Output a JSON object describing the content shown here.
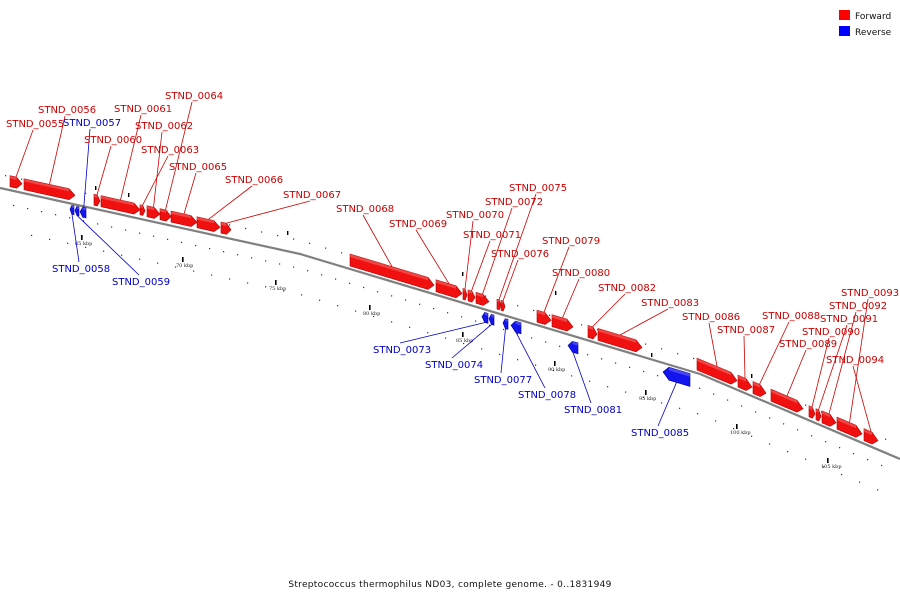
{
  "caption": "Streptococcus thermophilus ND03, complete genome. - 0..1831949",
  "legend": [
    {
      "label": "Forward",
      "color": "#ff0000"
    },
    {
      "label": "Reverse",
      "color": "#0000ff"
    }
  ],
  "colors": {
    "forward_fill": "#f01010",
    "forward_edge": "#b00000",
    "reverse_fill": "#1414ee",
    "reverse_edge": "#000099",
    "backbone": "#808080",
    "forward_label": "#cc0000",
    "reverse_label": "#0000cc"
  },
  "ticks": [
    {
      "kbp": 65,
      "label": "65 kbp"
    },
    {
      "kbp": 70,
      "label": "70 kbp"
    },
    {
      "kbp": 75,
      "label": "75 kbp"
    },
    {
      "kbp": 80,
      "label": "80 kbp"
    },
    {
      "kbp": 85,
      "label": "85 kbp"
    },
    {
      "kbp": 90,
      "label": "90 kbp"
    },
    {
      "kbp": 95,
      "label": "95 kbp"
    },
    {
      "kbp": 100,
      "label": "100 kbp"
    },
    {
      "kbp": 105,
      "label": "105 kbp"
    }
  ],
  "genes": [
    {
      "name": "STND_0055",
      "strand": "forward"
    },
    {
      "name": "STND_0056",
      "strand": "forward"
    },
    {
      "name": "STND_0057",
      "strand": "reverse"
    },
    {
      "name": "STND_0058",
      "strand": "reverse"
    },
    {
      "name": "STND_0059",
      "strand": "reverse"
    },
    {
      "name": "STND_0060",
      "strand": "forward"
    },
    {
      "name": "STND_0061",
      "strand": "forward"
    },
    {
      "name": "STND_0062",
      "strand": "forward"
    },
    {
      "name": "STND_0063",
      "strand": "forward"
    },
    {
      "name": "STND_0064",
      "strand": "forward"
    },
    {
      "name": "STND_0065",
      "strand": "forward"
    },
    {
      "name": "STND_0066",
      "strand": "forward"
    },
    {
      "name": "STND_0067",
      "strand": "forward"
    },
    {
      "name": "STND_0068",
      "strand": "forward"
    },
    {
      "name": "STND_0069",
      "strand": "forward"
    },
    {
      "name": "STND_0070",
      "strand": "forward"
    },
    {
      "name": "STND_0071",
      "strand": "forward"
    },
    {
      "name": "STND_0072",
      "strand": "forward"
    },
    {
      "name": "STND_0073",
      "strand": "reverse"
    },
    {
      "name": "STND_0074",
      "strand": "reverse"
    },
    {
      "name": "STND_0075",
      "strand": "forward"
    },
    {
      "name": "STND_0076",
      "strand": "forward"
    },
    {
      "name": "STND_0077",
      "strand": "reverse"
    },
    {
      "name": "STND_0078",
      "strand": "reverse"
    },
    {
      "name": "STND_0079",
      "strand": "forward"
    },
    {
      "name": "STND_0080",
      "strand": "forward"
    },
    {
      "name": "STND_0081",
      "strand": "reverse"
    },
    {
      "name": "STND_0082",
      "strand": "forward"
    },
    {
      "name": "STND_0083",
      "strand": "forward"
    },
    {
      "name": "STND_0085",
      "strand": "reverse"
    },
    {
      "name": "STND_0086",
      "strand": "forward"
    },
    {
      "name": "STND_0087",
      "strand": "forward"
    },
    {
      "name": "STND_0088",
      "strand": "forward"
    },
    {
      "name": "STND_0089",
      "strand": "forward"
    },
    {
      "name": "STND_0090",
      "strand": "forward"
    },
    {
      "name": "STND_0091",
      "strand": "forward"
    },
    {
      "name": "STND_0092",
      "strand": "forward"
    },
    {
      "name": "STND_0093",
      "strand": "forward"
    },
    {
      "name": "STND_0094",
      "strand": "forward"
    }
  ]
}
